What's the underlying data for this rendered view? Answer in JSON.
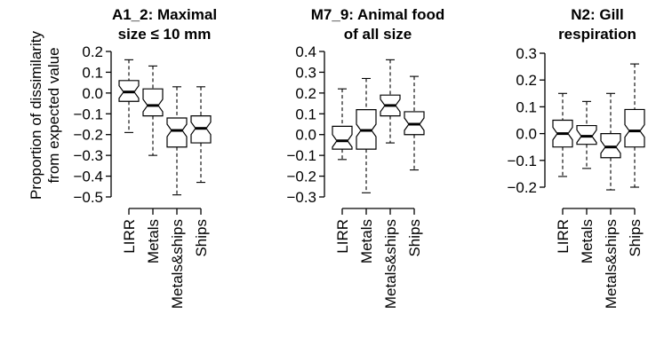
{
  "chart_data": {
    "y_label": [
      "Proportion of dissimilarity",
      "from expected value"
    ],
    "panels": [
      {
        "type": "box",
        "notched": true,
        "title": [
          "A1_2: Maximal",
          "size ≤ 10 mm"
        ],
        "yticks": [
          "0.2",
          "0.1",
          "0.0",
          "−0.1",
          "−0.2",
          "−0.3",
          "−0.4",
          "−0.5"
        ],
        "ylim": [
          -0.5,
          0.2
        ],
        "categories": [
          "LIRR",
          "Metals",
          "Metals&ships",
          "Ships"
        ],
        "boxes": [
          {
            "min": -0.19,
            "q1": -0.04,
            "median": 0.005,
            "q3": 0.06,
            "max": 0.16
          },
          {
            "min": -0.3,
            "q1": -0.11,
            "median": -0.06,
            "q3": 0.02,
            "max": 0.13
          },
          {
            "min": -0.49,
            "q1": -0.26,
            "median": -0.18,
            "q3": -0.12,
            "max": 0.03
          },
          {
            "min": -0.43,
            "q1": -0.24,
            "median": -0.17,
            "q3": -0.11,
            "max": 0.03
          }
        ]
      },
      {
        "type": "box",
        "notched": true,
        "title": [
          "M7_9: Animal food",
          "of all size"
        ],
        "yticks": [
          "0.4",
          "0.3",
          "0.2",
          "0.1",
          "0.0",
          "−0.1",
          "−0.2",
          "−0.3"
        ],
        "ylim": [
          -0.3,
          0.4
        ],
        "categories": [
          "LIRR",
          "Metals",
          "Metals&ships",
          "Ships"
        ],
        "boxes": [
          {
            "min": -0.12,
            "q1": -0.07,
            "median": -0.03,
            "q3": 0.04,
            "max": 0.22
          },
          {
            "min": -0.28,
            "q1": -0.07,
            "median": 0.02,
            "q3": 0.12,
            "max": 0.27
          },
          {
            "min": -0.04,
            "q1": 0.09,
            "median": 0.14,
            "q3": 0.19,
            "max": 0.36
          },
          {
            "min": -0.17,
            "q1": 0.0,
            "median": 0.05,
            "q3": 0.11,
            "max": 0.28
          }
        ]
      },
      {
        "type": "box",
        "notched": true,
        "title": [
          "N2: Gill",
          "respiration"
        ],
        "yticks": [
          "0.3",
          "0.2",
          "0.1",
          "0.0",
          "−0.1",
          "−0.2"
        ],
        "ylim": [
          -0.2,
          0.3
        ],
        "categories": [
          "LIRR",
          "Metals",
          "Metals&ships",
          "Ships"
        ],
        "boxes": [
          {
            "min": -0.16,
            "q1": -0.05,
            "median": 0.0,
            "q3": 0.05,
            "max": 0.15
          },
          {
            "min": -0.13,
            "q1": -0.04,
            "median": -0.01,
            "q3": 0.03,
            "max": 0.12
          },
          {
            "min": -0.21,
            "q1": -0.09,
            "median": -0.05,
            "q3": 0.0,
            "max": 0.15
          },
          {
            "min": -0.2,
            "q1": -0.05,
            "median": 0.01,
            "q3": 0.09,
            "max": 0.26
          }
        ]
      }
    ]
  }
}
